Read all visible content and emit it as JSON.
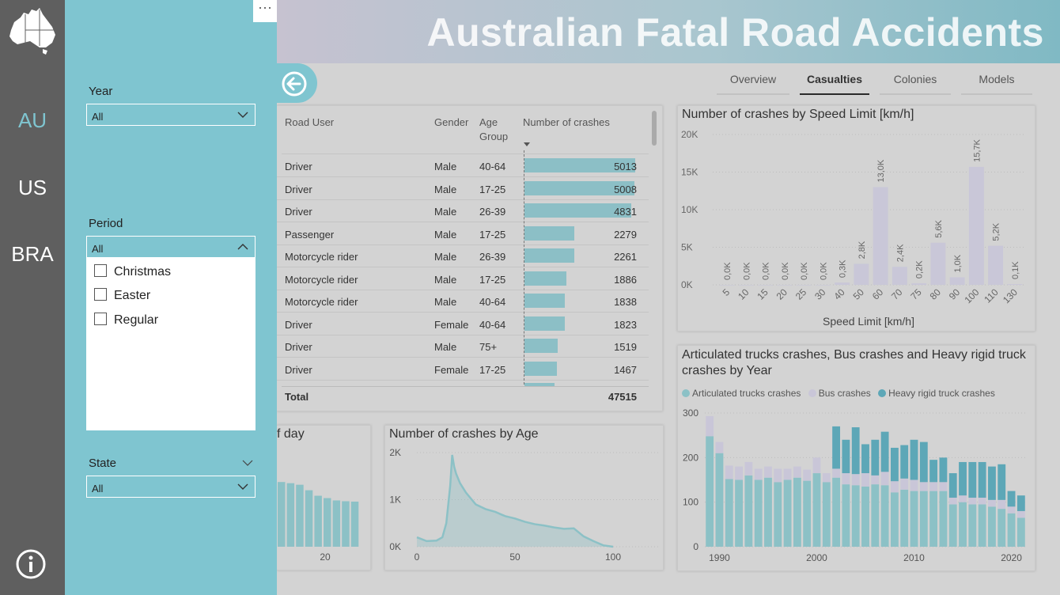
{
  "nav": {
    "items": [
      "AU",
      "US",
      "BRA"
    ],
    "active": "AU"
  },
  "header": {
    "title": "Australian Fatal Road Accidents"
  },
  "tabs": [
    "Overview",
    "Casualties",
    "Colonies",
    "Models"
  ],
  "filters": {
    "more": "···",
    "year": {
      "label": "Year",
      "value": "All"
    },
    "period": {
      "label": "Period",
      "value": "All",
      "options": [
        "Christmas",
        "Easter",
        "Regular"
      ]
    },
    "state": {
      "label": "State",
      "value": "All"
    }
  },
  "table": {
    "headers": {
      "road_user": "Road User",
      "gender": "Gender",
      "age_group": "Age Group",
      "crashes": "Number of crashes"
    },
    "rows": [
      {
        "road_user": "Driver",
        "gender": "Male",
        "age": "40-64",
        "crashes": 5013
      },
      {
        "road_user": "Driver",
        "gender": "Male",
        "age": "17-25",
        "crashes": 5008
      },
      {
        "road_user": "Driver",
        "gender": "Male",
        "age": "26-39",
        "crashes": 4831
      },
      {
        "road_user": "Passenger",
        "gender": "Male",
        "age": "17-25",
        "crashes": 2279
      },
      {
        "road_user": "Motorcycle rider",
        "gender": "Male",
        "age": "26-39",
        "crashes": 2261
      },
      {
        "road_user": "Motorcycle rider",
        "gender": "Male",
        "age": "17-25",
        "crashes": 1886
      },
      {
        "road_user": "Motorcycle rider",
        "gender": "Male",
        "age": "40-64",
        "crashes": 1838
      },
      {
        "road_user": "Driver",
        "gender": "Female",
        "age": "40-64",
        "crashes": 1823
      },
      {
        "road_user": "Driver",
        "gender": "Male",
        "age": "75+",
        "crashes": 1519
      },
      {
        "road_user": "Driver",
        "gender": "Female",
        "age": "17-25",
        "crashes": 1467
      }
    ],
    "total_label": "Total",
    "total_value": "47515"
  },
  "chart_data": [
    {
      "type": "bar",
      "title": "Number of crashes by Speed Limit [km/h]",
      "xlabel": "Speed Limit [km/h]",
      "ylabel": "",
      "categories": [
        "5",
        "10",
        "15",
        "20",
        "25",
        "30",
        "40",
        "50",
        "60",
        "70",
        "75",
        "80",
        "90",
        "100",
        "110",
        "130"
      ],
      "values": [
        0,
        0,
        0,
        0,
        0,
        0,
        300,
        2800,
        13000,
        2400,
        200,
        5600,
        1000,
        15700,
        5200,
        100
      ],
      "data_labels": [
        "0,0K",
        "0,0K",
        "0,0K",
        "0,0K",
        "0,0K",
        "0,0K",
        "0,3K",
        "2,8K",
        "13,0K",
        "2,4K",
        "0,2K",
        "5,6K",
        "1,0K",
        "15,7K",
        "5,2K",
        "0,1K"
      ],
      "yticks": [
        "0K",
        "5K",
        "10K",
        "15K",
        "20K"
      ],
      "ylim": [
        0,
        20000
      ],
      "color": "#c9c7d8",
      "grid": true
    },
    {
      "type": "bar",
      "stacked": true,
      "title": "Articulated trucks crashes, Bus crashes and Heavy rigid truck crashes by Year",
      "xlabel": "",
      "ylabel": "",
      "x": [
        1989,
        1990,
        1991,
        1992,
        1993,
        1994,
        1995,
        1996,
        1997,
        1998,
        1999,
        2000,
        2001,
        2002,
        2003,
        2004,
        2005,
        2006,
        2007,
        2008,
        2009,
        2010,
        2011,
        2012,
        2013,
        2014,
        2015,
        2016,
        2017,
        2018,
        2019,
        2020,
        2021
      ],
      "xticks": [
        "1990",
        "2000",
        "2010",
        "2020"
      ],
      "yticks": [
        "0",
        "100",
        "200",
        "300"
      ],
      "ylim": [
        0,
        300
      ],
      "legend_position": "top-left",
      "series": [
        {
          "name": "Articulated trucks crashes",
          "color": "#8cc1c6",
          "values": [
            248,
            210,
            152,
            150,
            160,
            150,
            155,
            145,
            150,
            155,
            148,
            165,
            145,
            155,
            140,
            138,
            135,
            140,
            138,
            122,
            128,
            125,
            125,
            125,
            125,
            95,
            100,
            95,
            95,
            90,
            85,
            75,
            65
          ]
        },
        {
          "name": "Bus crashes",
          "color": "#c9c6d8",
          "values": [
            45,
            25,
            30,
            30,
            30,
            25,
            25,
            30,
            25,
            25,
            25,
            35,
            20,
            20,
            25,
            25,
            30,
            20,
            30,
            25,
            25,
            25,
            20,
            20,
            20,
            15,
            15,
            15,
            15,
            15,
            20,
            15,
            15
          ]
        },
        {
          "name": "Heavy rigid truck crashes",
          "color": "#5da7b7",
          "values": [
            0,
            0,
            0,
            0,
            0,
            0,
            0,
            0,
            0,
            0,
            0,
            0,
            0,
            95,
            75,
            105,
            65,
            80,
            90,
            75,
            75,
            90,
            90,
            50,
            55,
            55,
            75,
            80,
            80,
            75,
            80,
            35,
            35
          ]
        }
      ]
    },
    {
      "type": "area",
      "title": "Number of crashes by Age",
      "xlabel": "",
      "ylabel": "",
      "x": [
        0,
        5,
        10,
        13,
        15,
        17,
        18,
        19,
        20,
        22,
        25,
        28,
        30,
        35,
        40,
        45,
        50,
        55,
        60,
        65,
        70,
        75,
        80,
        85,
        90,
        95,
        100
      ],
      "values": [
        200,
        120,
        130,
        200,
        500,
        1300,
        1950,
        1700,
        1550,
        1350,
        1150,
        1000,
        900,
        800,
        740,
        650,
        600,
        530,
        480,
        450,
        410,
        380,
        390,
        220,
        120,
        30,
        0
      ],
      "xticks": [
        "0",
        "50",
        "100"
      ],
      "yticks": [
        "0K",
        "1K",
        "2K"
      ],
      "ylim": [
        0,
        2000
      ],
      "color": "#8cc1c6"
    },
    {
      "type": "bar",
      "title": "f day",
      "xlabel": "",
      "ylabel": "",
      "categories": [
        "15",
        "16",
        "17",
        "18",
        "19",
        "20",
        "21",
        "22",
        "23"
      ],
      "values": [
        1650,
        1620,
        1580,
        1440,
        1300,
        1240,
        1180,
        1160,
        1150
      ],
      "xticks": [
        "20"
      ],
      "ylim": [
        0,
        2400
      ],
      "color": "#8cc1c6"
    }
  ]
}
